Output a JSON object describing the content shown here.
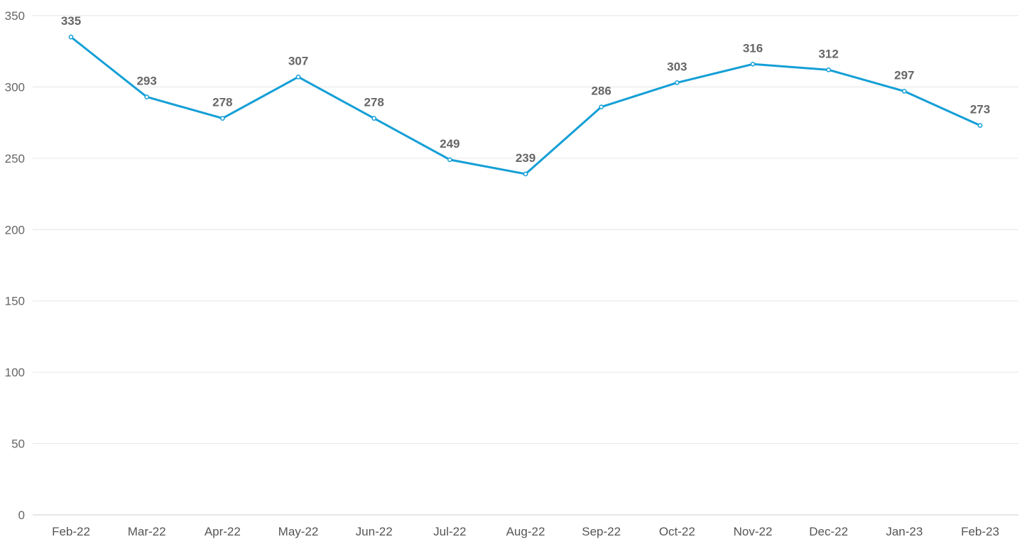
{
  "chart_data": {
    "type": "line",
    "title": "",
    "xlabel": "",
    "ylabel": "",
    "categories": [
      "Feb-22",
      "Mar-22",
      "Apr-22",
      "May-22",
      "Jun-22",
      "Jul-22",
      "Aug-22",
      "Sep-22",
      "Oct-22",
      "Nov-22",
      "Dec-22",
      "Jan-23",
      "Feb-23"
    ],
    "series": [
      {
        "values": [
          335,
          293,
          278,
          307,
          278,
          249,
          239,
          286,
          303,
          316,
          312,
          297,
          273
        ],
        "color": "#149fd6"
      }
    ],
    "ylim": [
      0,
      350
    ],
    "yticks": [
      0,
      50,
      100,
      150,
      200,
      250,
      300,
      350
    ],
    "grid": true,
    "legend": "none",
    "data_labels": true
  }
}
